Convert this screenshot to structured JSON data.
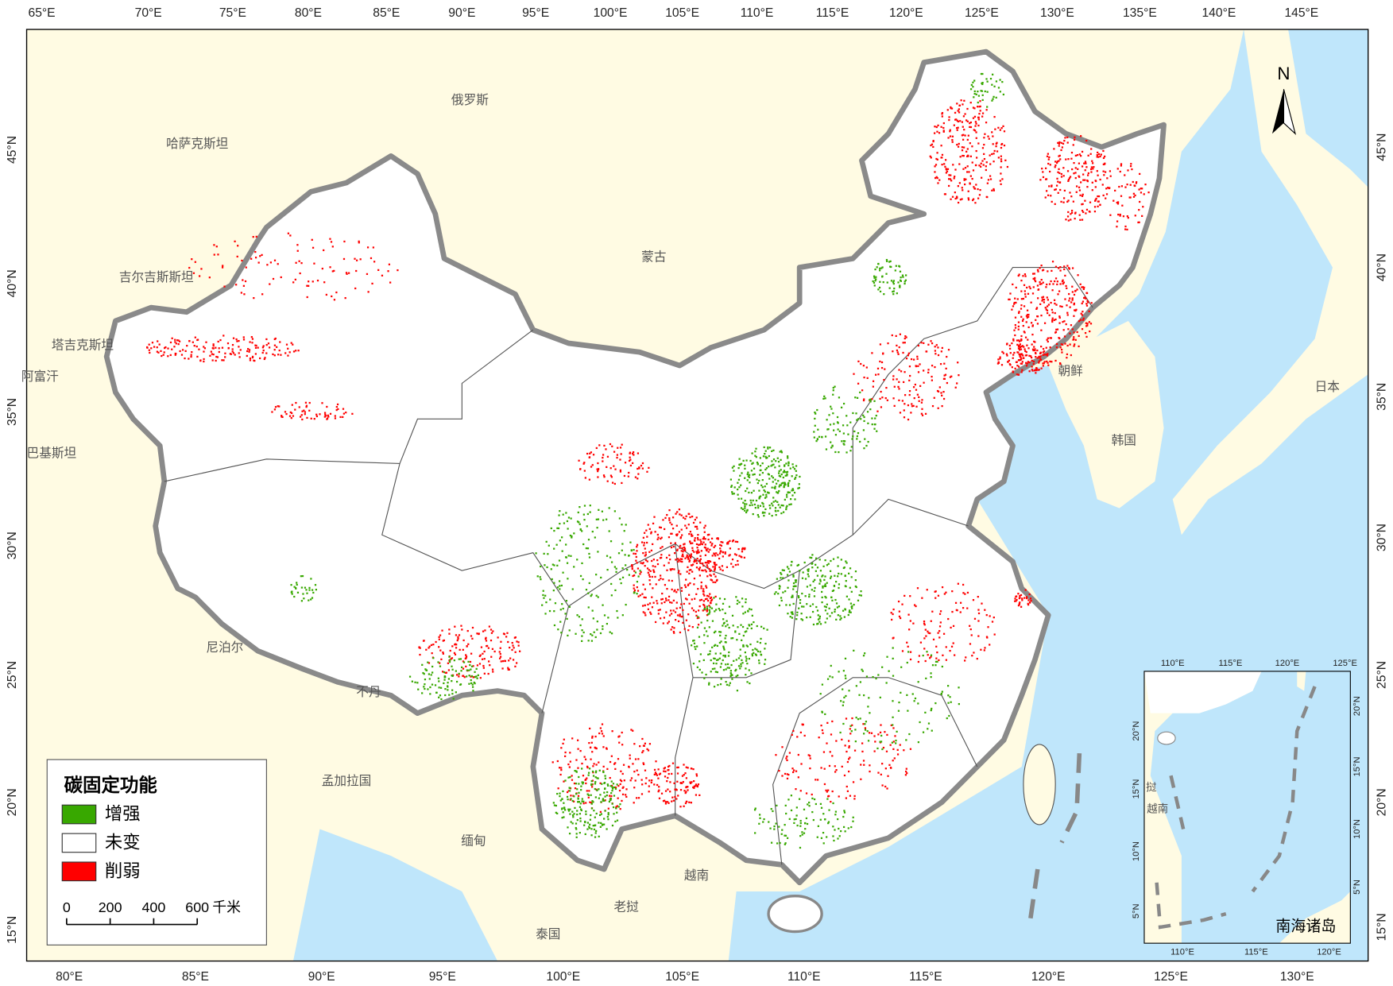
{
  "map": {
    "top_labels": [
      "65°E",
      "70°E",
      "75°E",
      "80°E",
      "85°E",
      "90°E",
      "95°E",
      "100°E",
      "105°E",
      "110°E",
      "115°E",
      "120°E",
      "125°E",
      "130°E",
      "135°E",
      "140°E",
      "145°E"
    ],
    "bottom_labels": [
      "80°E",
      "85°E",
      "90°E",
      "95°E",
      "100°E",
      "105°E",
      "110°E",
      "115°E",
      "120°E",
      "125°E",
      "130°E"
    ],
    "left_labels": [
      "45°N",
      "40°N",
      "35°N",
      "30°N",
      "25°N",
      "20°N",
      "15°N"
    ],
    "right_labels": [
      "45°N",
      "40°N",
      "35°N",
      "30°N",
      "25°N",
      "20°N",
      "15°N"
    ],
    "countries": [
      "俄罗斯",
      "哈萨克斯坦",
      "蒙古",
      "吉尔吉斯斯坦",
      "塔吉克斯坦",
      "阿富汗",
      "巴基斯坦",
      "尼泊尔",
      "不丹",
      "孟加拉国",
      "缅甸",
      "越南",
      "老挝",
      "泰国",
      "朝鲜",
      "韩国",
      "日本"
    ],
    "north": "N"
  },
  "legend": {
    "title": "碳固定功能",
    "items": [
      "增强",
      "未变",
      "削弱"
    ]
  },
  "scale_bar": {
    "ticks": [
      0,
      200,
      400,
      600
    ],
    "unit": "千米"
  },
  "inset": {
    "title": "南海诸岛",
    "top_labels": [
      "110°E",
      "115°E",
      "120°E",
      "125°E"
    ],
    "bottom_labels": [
      "110°E",
      "115°E",
      "120°E"
    ],
    "left_labels": [
      "20°N",
      "15°N",
      "10°N",
      "5°N"
    ],
    "right_labels": [
      "20°N",
      "15°N",
      "10°N",
      "5°N"
    ],
    "places": [
      "挝",
      "越南"
    ]
  }
}
